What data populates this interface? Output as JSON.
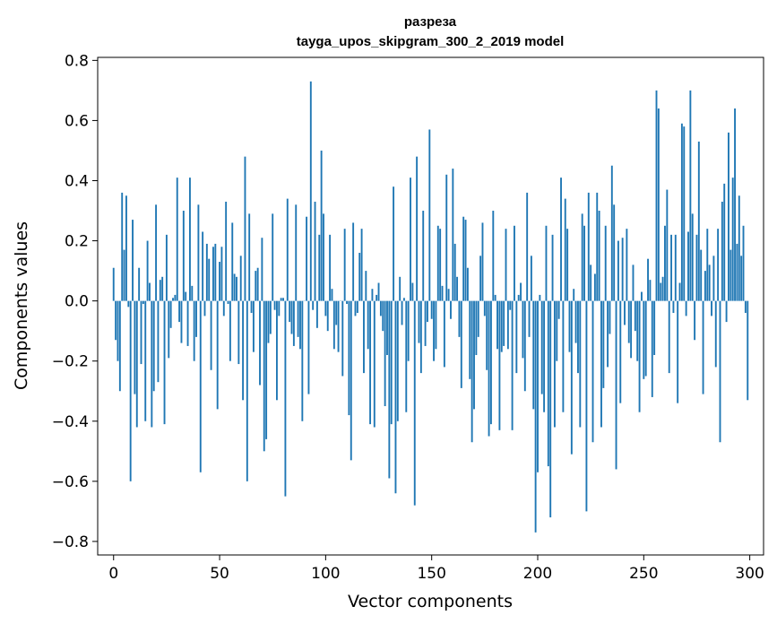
{
  "chart_data": {
    "type": "bar",
    "title_line1": "разреза",
    "title_line2": "tayga_upos_skipgram_300_2_2019 model",
    "xlabel": "Vector components",
    "ylabel": "Components values",
    "xlim": [
      -7.5,
      306.5
    ],
    "ylim": [
      -0.845,
      0.81
    ],
    "xticks": [
      0,
      50,
      100,
      150,
      200,
      250,
      300
    ],
    "xtick_labels": [
      "0",
      "50",
      "100",
      "150",
      "200",
      "250",
      "300"
    ],
    "yticks": [
      0.8,
      0.6,
      0.4,
      0.2,
      0.0,
      -0.2,
      -0.4,
      -0.6,
      -0.8
    ],
    "ytick_labels": [
      "0.8",
      "0.6",
      "0.4",
      "0.2",
      "0.0",
      "−0.2",
      "−0.4",
      "−0.6",
      "−0.8"
    ],
    "bar_color": "#1f77b4",
    "x": "0..299 (component index)",
    "values": [
      0.11,
      -0.13,
      -0.2,
      -0.3,
      0.36,
      0.17,
      0.35,
      -0.02,
      -0.6,
      0.27,
      -0.31,
      -0.42,
      0.11,
      -0.21,
      -0.01,
      -0.4,
      0.2,
      0.06,
      -0.42,
      -0.3,
      0.32,
      -0.27,
      0.07,
      0.08,
      -0.41,
      0.22,
      -0.19,
      -0.09,
      0.01,
      0.02,
      0.41,
      -0.07,
      -0.14,
      0.3,
      0.03,
      -0.15,
      0.41,
      0.05,
      -0.2,
      -0.12,
      0.32,
      -0.57,
      0.23,
      -0.05,
      0.19,
      0.14,
      -0.23,
      0.18,
      0.19,
      -0.36,
      0.13,
      0.18,
      -0.05,
      0.33,
      -0.01,
      -0.2,
      0.26,
      0.09,
      0.08,
      -0.21,
      0.15,
      -0.33,
      0.48,
      -0.6,
      0.29,
      -0.04,
      -0.17,
      0.1,
      0.11,
      -0.28,
      0.21,
      -0.5,
      -0.46,
      -0.14,
      -0.11,
      0.29,
      -0.03,
      -0.33,
      -0.05,
      0.01,
      0.01,
      -0.65,
      0.34,
      -0.07,
      -0.11,
      -0.15,
      0.32,
      -0.12,
      -0.16,
      -0.4,
      0.0,
      0.28,
      -0.31,
      0.73,
      -0.03,
      0.33,
      -0.09,
      0.22,
      0.5,
      0.29,
      -0.05,
      -0.1,
      0.22,
      0.04,
      -0.16,
      -0.08,
      -0.17,
      0.0,
      -0.25,
      0.24,
      -0.01,
      -0.38,
      -0.53,
      0.26,
      -0.05,
      -0.04,
      0.16,
      0.24,
      -0.24,
      0.1,
      -0.16,
      -0.41,
      0.04,
      -0.42,
      0.02,
      0.06,
      -0.05,
      -0.1,
      -0.35,
      -0.18,
      -0.59,
      -0.41,
      0.38,
      -0.64,
      -0.4,
      0.08,
      -0.08,
      0.01,
      -0.37,
      -0.2,
      0.41,
      0.06,
      -0.68,
      0.48,
      -0.14,
      -0.24,
      0.3,
      -0.15,
      -0.07,
      0.57,
      -0.06,
      -0.2,
      -0.16,
      0.25,
      0.24,
      0.05,
      -0.22,
      0.42,
      0.04,
      -0.06,
      0.44,
      0.19,
      0.08,
      -0.12,
      -0.29,
      0.28,
      0.27,
      0.11,
      -0.26,
      -0.47,
      -0.36,
      -0.18,
      -0.12,
      0.15,
      0.26,
      -0.05,
      -0.23,
      -0.45,
      -0.41,
      0.3,
      0.02,
      -0.16,
      -0.43,
      -0.17,
      -0.15,
      0.24,
      -0.16,
      -0.03,
      -0.43,
      0.25,
      -0.24,
      0.02,
      0.06,
      -0.19,
      -0.3,
      0.36,
      -0.12,
      0.15,
      -0.36,
      -0.77,
      -0.57,
      0.02,
      -0.31,
      -0.37,
      0.25,
      -0.55,
      -0.72,
      0.22,
      -0.42,
      -0.2,
      -0.06,
      0.41,
      -0.37,
      0.34,
      0.24,
      -0.17,
      -0.51,
      0.04,
      -0.14,
      -0.24,
      -0.42,
      0.29,
      0.25,
      -0.7,
      0.36,
      0.12,
      -0.47,
      0.09,
      0.36,
      0.3,
      -0.42,
      -0.29,
      0.25,
      -0.22,
      -0.11,
      0.45,
      0.32,
      -0.56,
      0.2,
      -0.34,
      0.21,
      -0.08,
      0.24,
      -0.14,
      -0.19,
      0.12,
      -0.1,
      -0.2,
      -0.37,
      0.03,
      -0.26,
      -0.25,
      0.14,
      0.07,
      -0.32,
      -0.18,
      0.7,
      0.64,
      0.06,
      0.08,
      0.25,
      0.37,
      -0.24,
      0.22,
      -0.04,
      0.22,
      -0.34,
      0.06,
      0.59,
      0.58,
      -0.05,
      0.23,
      0.7,
      0.29,
      -0.13,
      0.22,
      0.53,
      0.17,
      -0.31,
      0.1,
      0.24,
      0.12,
      -0.05,
      0.15,
      -0.22,
      0.24,
      -0.47,
      0.33,
      0.39,
      -0.07,
      0.56,
      0.17,
      0.41,
      0.64,
      0.19,
      0.35,
      0.15,
      0.25,
      -0.04,
      -0.33
    ]
  }
}
